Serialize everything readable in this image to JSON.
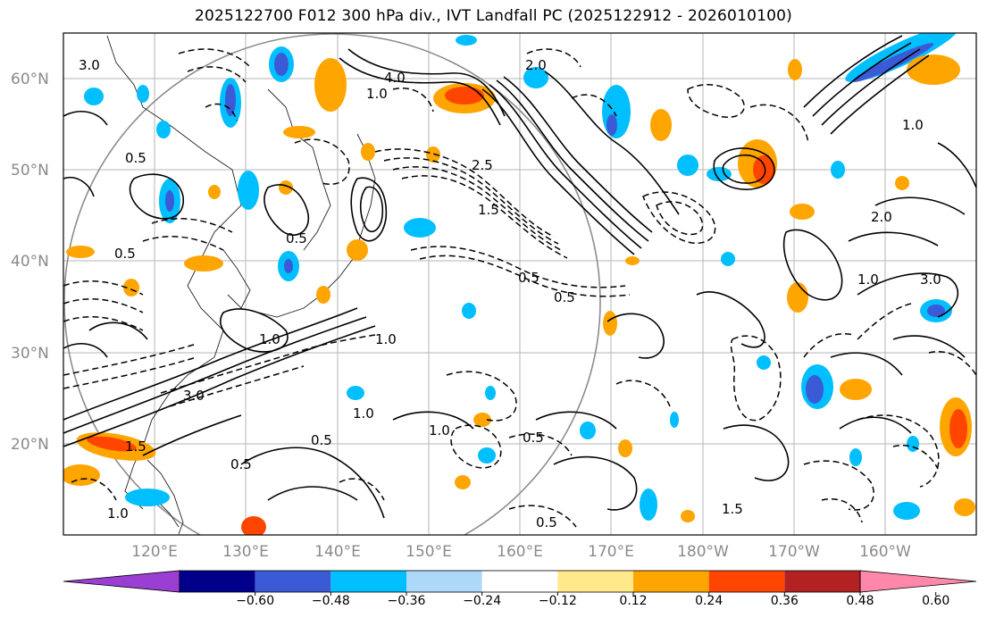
{
  "title": "2025122700 F012 300 hPa div., IVT Landfall PC (2025122912 - 2026010100)",
  "lat_labels": [
    "60°N",
    "50°N",
    "40°N",
    "30°N",
    "20°N"
  ],
  "lon_labels": [
    "120°E",
    "130°E",
    "140°E",
    "150°E",
    "160°E",
    "170°E",
    "180°W",
    "170°W",
    "160°W"
  ],
  "colorbar": {
    "ticks": [
      "−0.60",
      "−0.48",
      "−0.36",
      "−0.24",
      "−0.12",
      "0.12",
      "0.24",
      "0.36",
      "0.48",
      "0.60"
    ],
    "colors": [
      "#9b3fd4",
      "#00008b",
      "#3b5bd6",
      "#00bfff",
      "#add8f7",
      "#ffffff",
      "#ffe98a",
      "#ffa500",
      "#ff4500",
      "#b22222",
      "#ff88aa"
    ]
  },
  "contour_labels": [
    "3.0",
    "4.0",
    "2.0",
    "0.5",
    "1.0",
    "1.5",
    "0.5",
    "2.5",
    "1.0",
    "1.0",
    "3.0",
    "0.5",
    "1.0",
    "0.5",
    "1.5",
    "0.5",
    "0.5",
    "1.0",
    "1.5",
    "0.5",
    "1.0",
    "3.0",
    "2.0",
    "1.0",
    "0.5",
    "0.5",
    "1.0"
  ]
}
